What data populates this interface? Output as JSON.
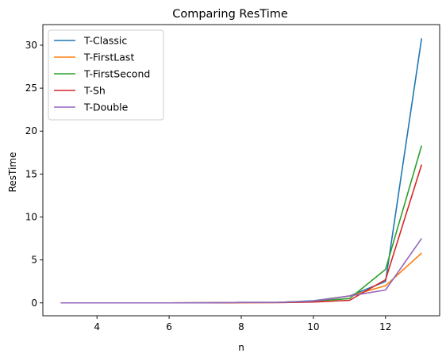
{
  "chart_data": {
    "type": "line",
    "title": "Comparing ResTime",
    "xlabel": "n",
    "ylabel": "ResTime",
    "xlim": [
      2.5,
      13.5
    ],
    "ylim": [
      -1.5,
      32.4
    ],
    "x_ticks": [
      4,
      6,
      8,
      10,
      12
    ],
    "y_ticks": [
      0,
      5,
      10,
      15,
      20,
      25,
      30
    ],
    "grid": false,
    "legend_position": "top-left",
    "x": [
      3,
      4,
      5,
      6,
      7,
      8,
      9,
      10,
      11,
      12,
      13
    ],
    "series": [
      {
        "name": "T-Classic",
        "color": "#1f77b4",
        "values": [
          0,
          0,
          0,
          0,
          0.01,
          0.05,
          0.05,
          0.25,
          0.8,
          2.5,
          30.8
        ]
      },
      {
        "name": "T-FirstLast",
        "color": "#ff7f0e",
        "values": [
          0,
          0,
          0,
          0,
          0.01,
          0.03,
          0.05,
          0.2,
          0.8,
          2.0,
          5.8
        ]
      },
      {
        "name": "T-FirstSecond",
        "color": "#2ca02c",
        "values": [
          0,
          0,
          0,
          0,
          0.01,
          0.05,
          0.05,
          0.2,
          0.5,
          3.9,
          18.3
        ]
      },
      {
        "name": "T-Sh",
        "color": "#d62728",
        "values": [
          0,
          0,
          0,
          0,
          0.01,
          0.03,
          0.03,
          0.1,
          0.3,
          2.7,
          16.1
        ]
      },
      {
        "name": "T-Double",
        "color": "#9467bd",
        "values": [
          0,
          0,
          0,
          0,
          0.01,
          0.05,
          0.05,
          0.2,
          0.8,
          1.5,
          7.5
        ]
      }
    ]
  }
}
